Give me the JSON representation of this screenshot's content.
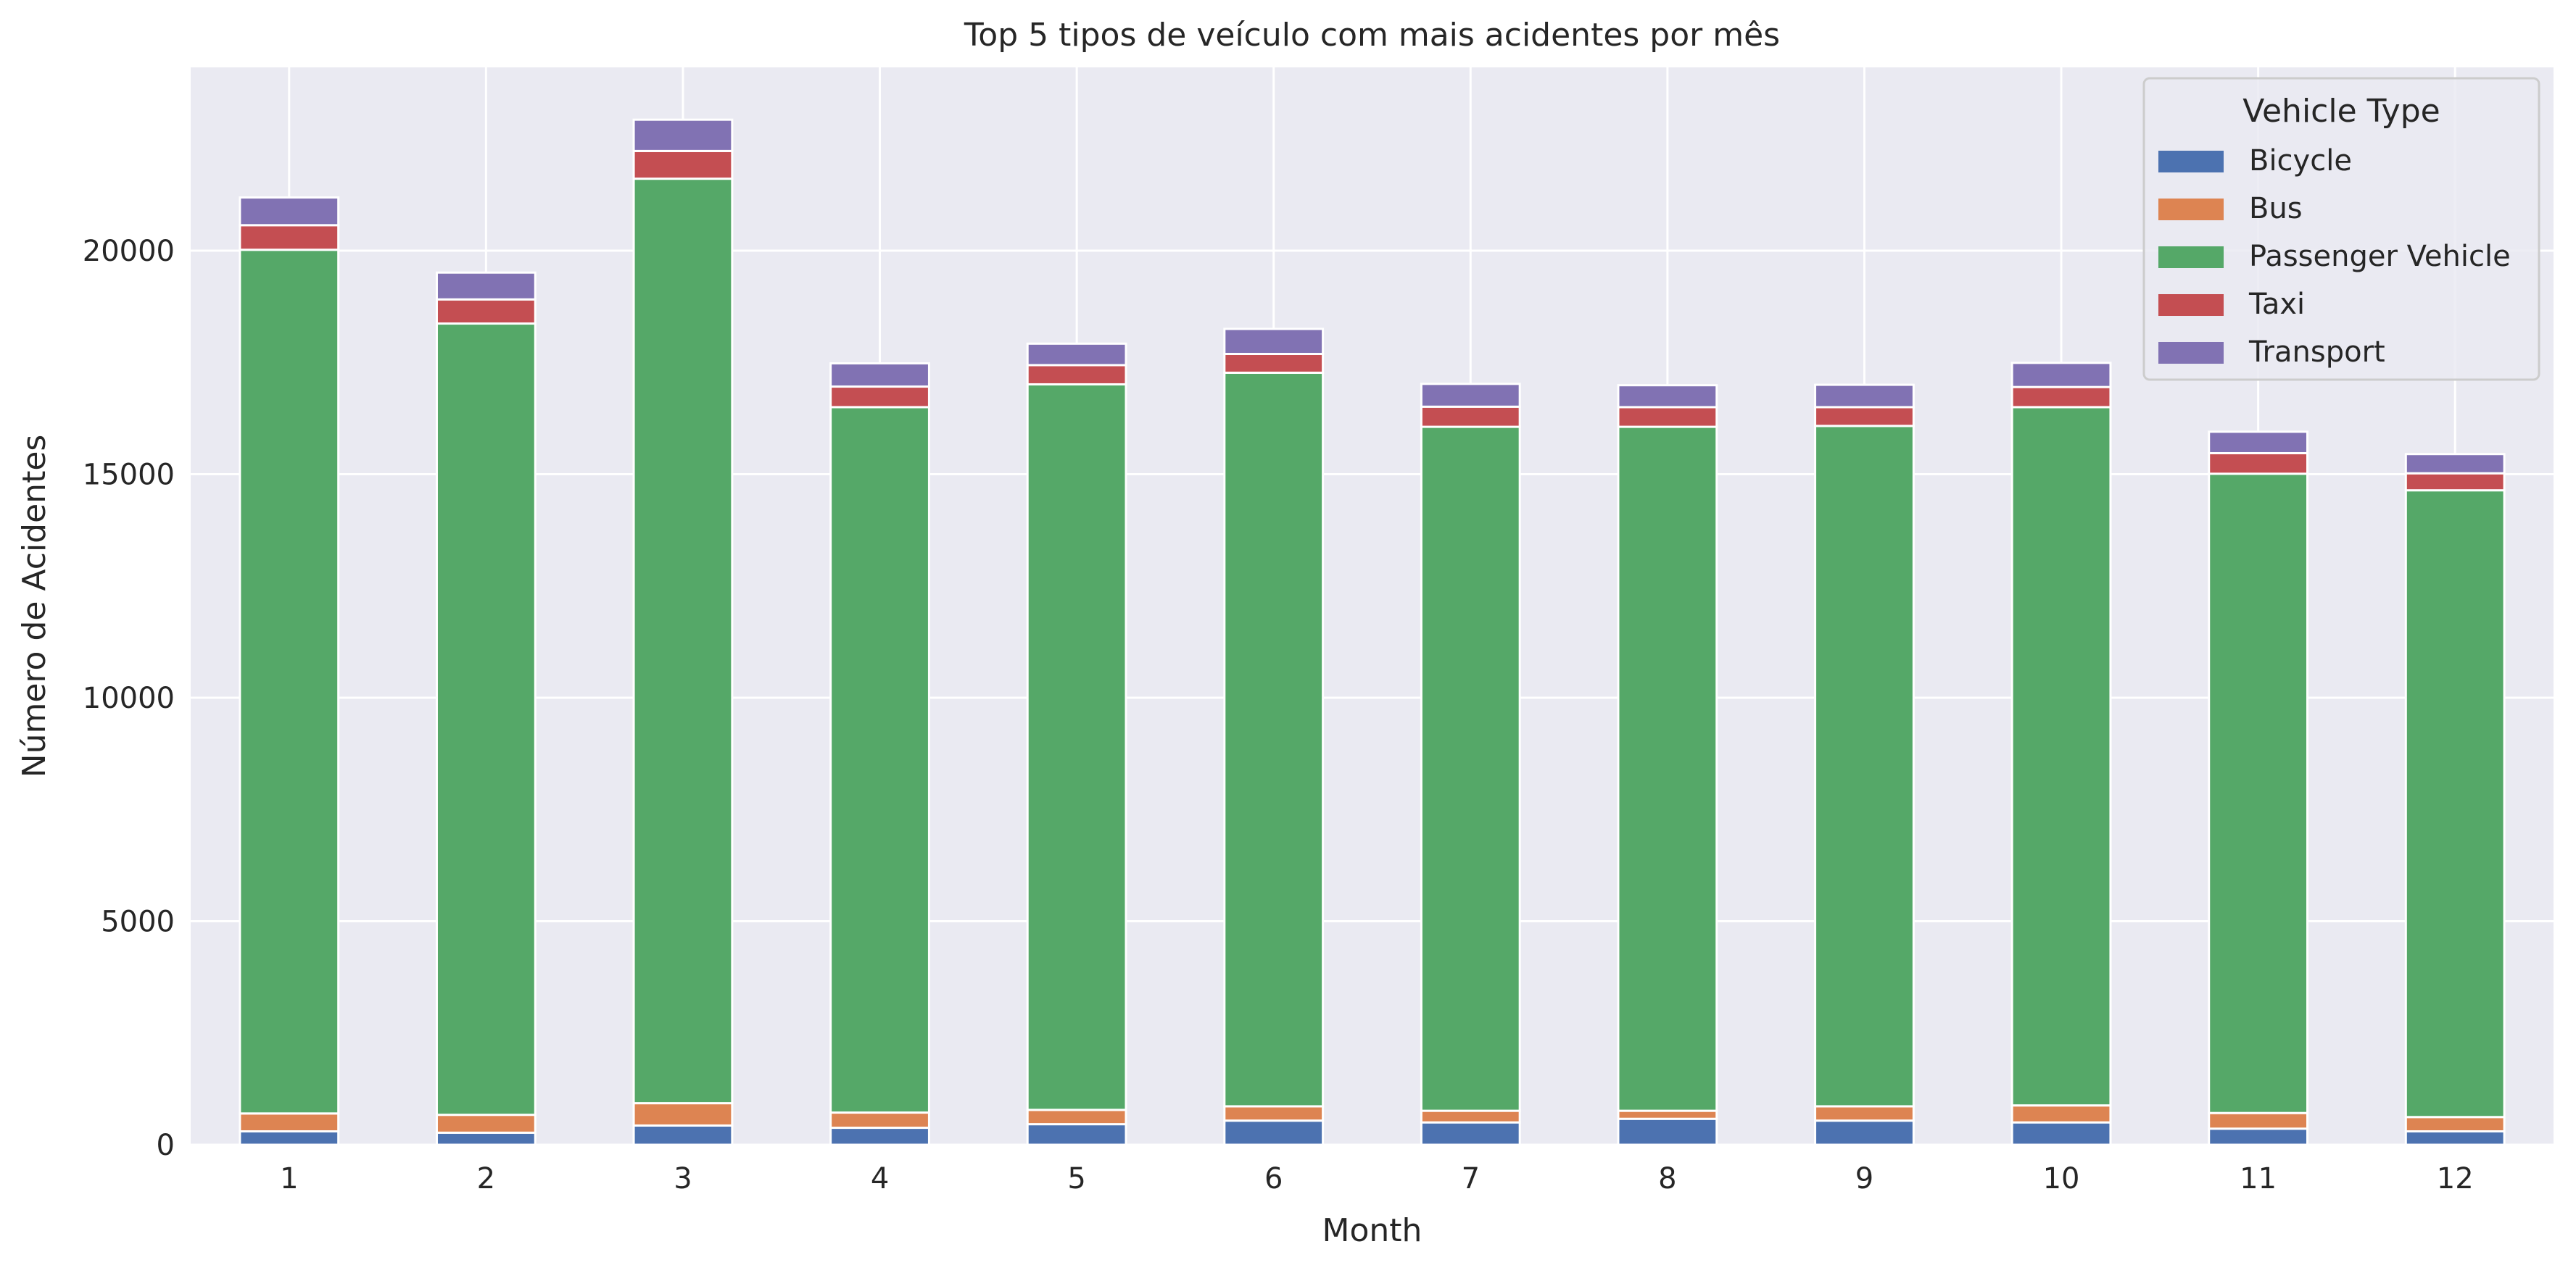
{
  "chart_data": {
    "type": "bar",
    "stacked": true,
    "title": "Top 5 tipos de veículo com mais acidentes por mês",
    "xlabel": "Month",
    "ylabel": "Número de Acidentes",
    "categories": [
      "1",
      "2",
      "3",
      "4",
      "5",
      "6",
      "7",
      "8",
      "9",
      "10",
      "11",
      "12"
    ],
    "ylim": [
      0,
      24100
    ],
    "yticks": [
      0,
      5000,
      10000,
      15000,
      20000
    ],
    "grid": true,
    "legend": {
      "title": "Vehicle Type",
      "position": "top-right"
    },
    "series": [
      {
        "name": "Bicycle",
        "color": "#4c72b0",
        "values": [
          300,
          270,
          430,
          380,
          460,
          540,
          500,
          580,
          540,
          500,
          360,
          300
        ]
      },
      {
        "name": "Bus",
        "color": "#dd8452",
        "values": [
          400,
          400,
          500,
          340,
          320,
          320,
          260,
          180,
          320,
          380,
          350,
          320
        ]
      },
      {
        "name": "Passenger Vehicle",
        "color": "#55a868",
        "values": [
          19320,
          17700,
          20680,
          15780,
          16230,
          16410,
          15300,
          15300,
          15220,
          15620,
          14300,
          14020
        ]
      },
      {
        "name": "Taxi",
        "color": "#c44e52",
        "values": [
          550,
          540,
          620,
          460,
          430,
          420,
          450,
          440,
          420,
          450,
          460,
          380
        ]
      },
      {
        "name": "Transport",
        "color": "#8172b3",
        "values": [
          620,
          600,
          700,
          520,
          480,
          560,
          510,
          490,
          500,
          540,
          480,
          430
        ]
      }
    ]
  }
}
